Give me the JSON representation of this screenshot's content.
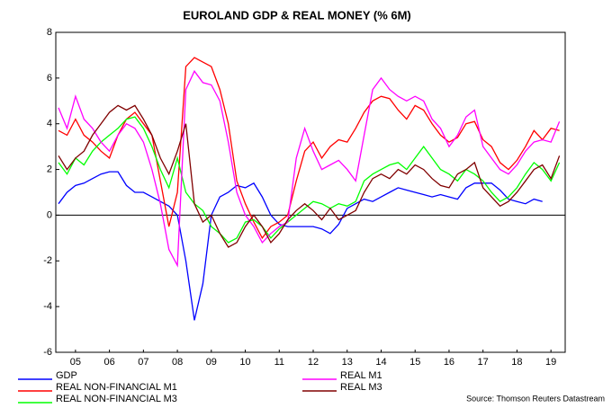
{
  "chart_data": {
    "type": "line",
    "title": "EUROLAND GDP & REAL MONEY (% 6M)",
    "source": "Source: Thomson Reuters Datastream",
    "x": [
      2005,
      2005.25,
      2005.5,
      2005.75,
      2006,
      2006.25,
      2006.5,
      2006.75,
      2007,
      2007.25,
      2007.5,
      2007.75,
      2008,
      2008.25,
      2008.5,
      2008.75,
      2009,
      2009.25,
      2009.5,
      2009.75,
      2010,
      2010.25,
      2010.5,
      2010.75,
      2011,
      2011.25,
      2011.5,
      2011.75,
      2012,
      2012.25,
      2012.5,
      2012.75,
      2013,
      2013.25,
      2013.5,
      2013.75,
      2014,
      2014.25,
      2014.5,
      2014.75,
      2015,
      2015.25,
      2015.5,
      2015.75,
      2016,
      2016.25,
      2016.5,
      2016.75,
      2017,
      2017.25,
      2017.5,
      2017.75,
      2018,
      2018.25,
      2018.5,
      2018.75,
      2019,
      2019.25,
      2019.5,
      2019.75
    ],
    "series": [
      {
        "name": "GDP",
        "color": "#0000ff",
        "values": [
          0.5,
          1.0,
          1.3,
          1.4,
          1.6,
          1.8,
          1.9,
          1.9,
          1.3,
          1.0,
          1.0,
          0.8,
          0.6,
          0.4,
          0.0,
          -2.0,
          -4.6,
          -3.0,
          0.0,
          0.8,
          1.0,
          1.3,
          1.2,
          1.4,
          0.8,
          0.0,
          -0.4,
          -0.5,
          -0.5,
          -0.5,
          -0.5,
          -0.6,
          -0.8,
          -0.4,
          0.3,
          0.5,
          0.7,
          0.6,
          0.8,
          1.0,
          1.2,
          1.1,
          1.0,
          0.9,
          0.8,
          0.9,
          0.8,
          0.7,
          1.2,
          1.4,
          1.4,
          1.4,
          1.1,
          0.7,
          0.6,
          0.5,
          0.7,
          0.6,
          null,
          null
        ]
      },
      {
        "name": "REAL NON-FINANCIAL M1",
        "color": "#ff0000",
        "values": [
          3.7,
          3.5,
          4.2,
          3.5,
          3.2,
          2.8,
          2.5,
          3.5,
          4.2,
          4.5,
          4.0,
          3.5,
          1.5,
          -0.5,
          1.0,
          6.5,
          6.9,
          6.7,
          6.5,
          5.5,
          4.0,
          1.5,
          0.5,
          -0.3,
          -1.0,
          -0.5,
          -0.3,
          0.0,
          1.5,
          2.8,
          3.2,
          2.5,
          3.0,
          3.3,
          3.2,
          3.8,
          4.5,
          5.0,
          5.2,
          5.1,
          4.6,
          4.2,
          4.8,
          4.6,
          4.0,
          3.5,
          3.2,
          3.4,
          4.0,
          4.1,
          3.3,
          3.0,
          2.3,
          2.0,
          2.4,
          3.0,
          3.7,
          3.3,
          3.8,
          3.7
        ]
      },
      {
        "name": "REAL NON-FINANCIAL M3",
        "color": "#00ff00",
        "values": [
          2.3,
          1.8,
          2.5,
          2.2,
          2.8,
          3.2,
          3.5,
          3.8,
          4.2,
          4.3,
          3.8,
          3.0,
          2.0,
          1.2,
          2.5,
          1.0,
          0.5,
          0.2,
          -0.5,
          -0.8,
          -1.2,
          -1.0,
          -0.3,
          -0.2,
          -0.5,
          -1.0,
          -0.6,
          -0.3,
          0.0,
          0.3,
          0.6,
          0.5,
          0.3,
          0.5,
          0.4,
          0.6,
          1.5,
          1.8,
          2.0,
          2.2,
          2.3,
          2.0,
          2.5,
          3.0,
          2.5,
          2.0,
          1.8,
          1.5,
          2.0,
          1.8,
          1.5,
          1.0,
          0.6,
          0.8,
          1.2,
          1.8,
          2.3,
          2.0,
          1.5,
          2.3
        ]
      },
      {
        "name": "REAL M1",
        "color": "#ff00ff",
        "values": [
          4.7,
          3.8,
          5.2,
          4.2,
          3.8,
          3.2,
          2.8,
          3.5,
          4.0,
          3.8,
          3.2,
          2.0,
          0.5,
          -1.5,
          -2.2,
          5.5,
          6.3,
          5.8,
          5.7,
          5.0,
          3.2,
          1.0,
          0.0,
          -0.5,
          -1.2,
          -0.8,
          -0.5,
          -0.3,
          2.5,
          3.8,
          2.8,
          2.0,
          2.2,
          2.4,
          2.0,
          1.5,
          3.5,
          5.5,
          6.0,
          5.5,
          5.2,
          5.0,
          5.2,
          5.0,
          4.2,
          3.8,
          3.0,
          3.5,
          4.3,
          4.6,
          3.0,
          2.5,
          2.0,
          1.8,
          2.2,
          2.8,
          3.2,
          3.3,
          3.2,
          4.1
        ]
      },
      {
        "name": "REAL M3",
        "color": "#800000",
        "values": [
          2.6,
          2.0,
          2.5,
          2.8,
          3.5,
          4.0,
          4.5,
          4.8,
          4.6,
          4.8,
          4.2,
          3.5,
          2.5,
          1.8,
          2.8,
          4.0,
          0.5,
          -0.3,
          0.0,
          -0.8,
          -1.4,
          -1.2,
          -0.5,
          0.0,
          -0.5,
          -1.2,
          -0.8,
          -0.2,
          0.2,
          0.5,
          0.2,
          -0.2,
          0.3,
          -0.2,
          0.0,
          0.2,
          1.0,
          1.6,
          1.8,
          1.6,
          2.0,
          1.8,
          2.2,
          2.0,
          1.6,
          1.3,
          1.2,
          1.8,
          2.0,
          2.3,
          1.2,
          0.8,
          0.4,
          0.6,
          1.0,
          1.5,
          2.0,
          2.2,
          1.6,
          2.6
        ]
      }
    ],
    "xlim": [
      2004.92,
      2019.92
    ],
    "xticks": [
      {
        "value": 2005.5,
        "label": "05"
      },
      {
        "value": 2006.5,
        "label": "06"
      },
      {
        "value": 2007.5,
        "label": "07"
      },
      {
        "value": 2008.5,
        "label": "08"
      },
      {
        "value": 2009.5,
        "label": "09"
      },
      {
        "value": 2010.5,
        "label": "10"
      },
      {
        "value": 2011.5,
        "label": "11"
      },
      {
        "value": 2012.5,
        "label": "12"
      },
      {
        "value": 2013.5,
        "label": "13"
      },
      {
        "value": 2014.5,
        "label": "14"
      },
      {
        "value": 2015.5,
        "label": "15"
      },
      {
        "value": 2016.5,
        "label": "16"
      },
      {
        "value": 2017.5,
        "label": "17"
      },
      {
        "value": 2018.5,
        "label": "18"
      },
      {
        "value": 2019.5,
        "label": "19"
      }
    ],
    "ylim": [
      -6,
      8
    ],
    "yticks": [
      -6,
      -4,
      -2,
      0,
      2,
      4,
      6,
      8
    ],
    "zero_line": true,
    "grid": false
  }
}
